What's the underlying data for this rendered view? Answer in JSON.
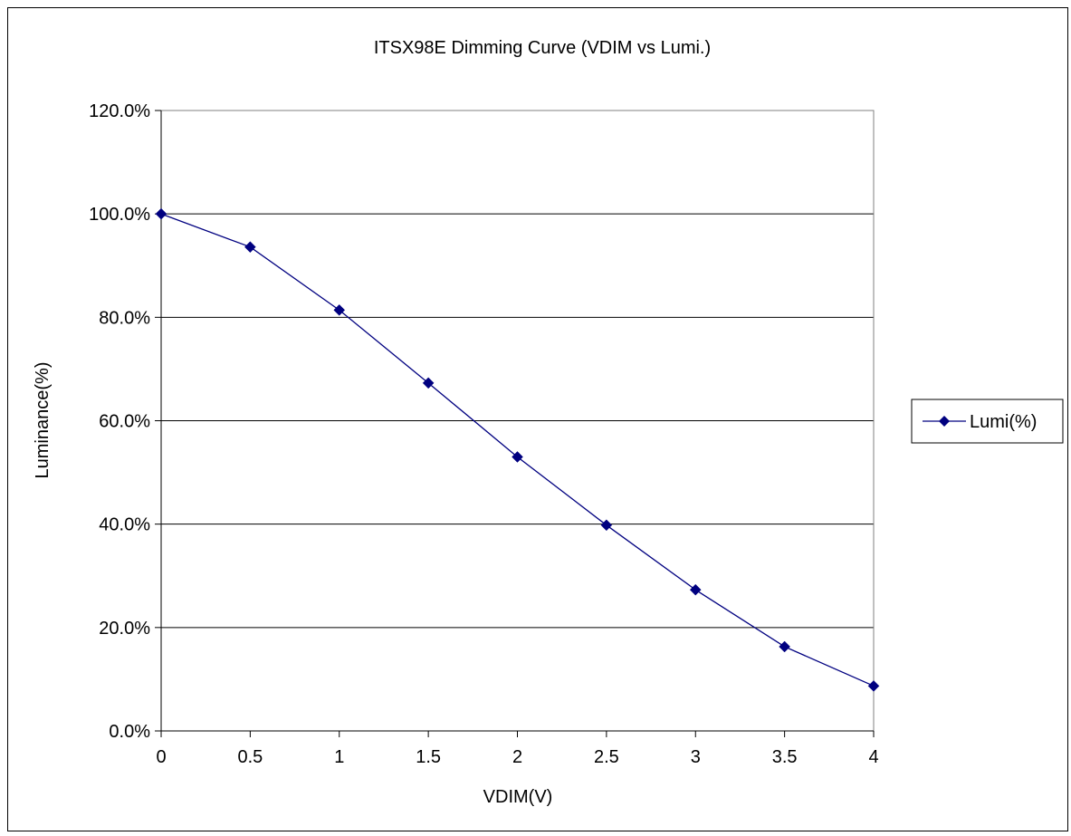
{
  "chart_data": {
    "type": "line",
    "title": "ITSX98E Dimming Curve (VDIM vs Lumi.)",
    "xlabel": "VDIM(V)",
    "ylabel": "Luminance(%)",
    "x_tick_labels": [
      "0",
      "0.5",
      "1",
      "1.5",
      "2",
      "2.5",
      "3",
      "3.5",
      "4"
    ],
    "y_tick_labels": [
      "0.0%",
      "20.0%",
      "40.0%",
      "60.0%",
      "80.0%",
      "100.0%",
      "120.0%"
    ],
    "xlim": [
      0,
      4
    ],
    "ylim": [
      0,
      120
    ],
    "grid": "horizontal",
    "legend_position": "right",
    "series": [
      {
        "name": "Lumi(%)",
        "color": "#000080",
        "marker": "diamond",
        "x": [
          0,
          0.5,
          1,
          1.5,
          2,
          2.5,
          3,
          3.5,
          4
        ],
        "y": [
          100.0,
          93.6,
          81.4,
          67.3,
          53.0,
          39.8,
          27.3,
          16.3,
          8.7
        ]
      }
    ]
  }
}
